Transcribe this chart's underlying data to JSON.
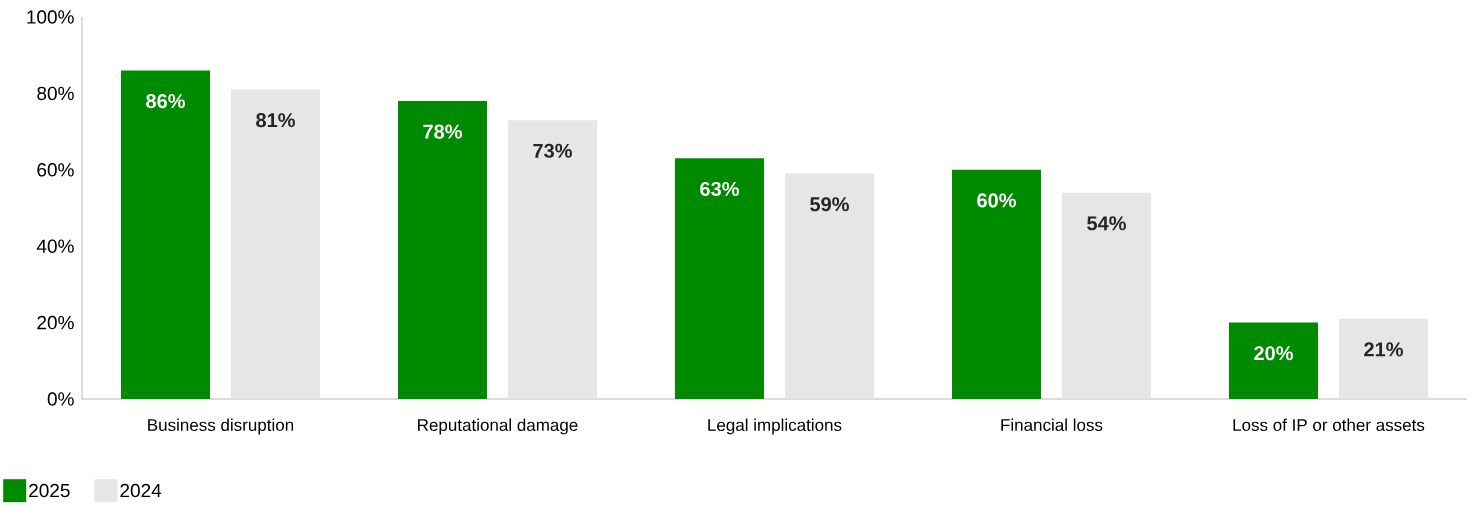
{
  "chart_data": {
    "type": "bar",
    "categories": [
      "Business disruption",
      "Reputational damage",
      "Legal implications",
      "Financial loss",
      "Loss of IP or other assets"
    ],
    "series": [
      {
        "name": "2025",
        "color": "#008a00",
        "values": [
          86,
          78,
          63,
          60,
          20
        ],
        "value_labels": [
          "86%",
          "78%",
          "63%",
          "60%",
          "20%"
        ]
      },
      {
        "name": "2024",
        "color": "#e6e6e6",
        "values": [
          81,
          73,
          59,
          54,
          21
        ],
        "value_labels": [
          "81%",
          "73%",
          "59%",
          "54%",
          "21%"
        ]
      }
    ],
    "ylim": [
      0,
      100
    ],
    "yticks": [
      {
        "value": 0,
        "label": "0%"
      },
      {
        "value": 20,
        "label": "20%"
      },
      {
        "value": 40,
        "label": "40%"
      },
      {
        "value": 60,
        "label": "60%"
      },
      {
        "value": 80,
        "label": "80%"
      },
      {
        "value": 100,
        "label": "100%"
      }
    ],
    "grid": false,
    "legend": "bottom left"
  }
}
